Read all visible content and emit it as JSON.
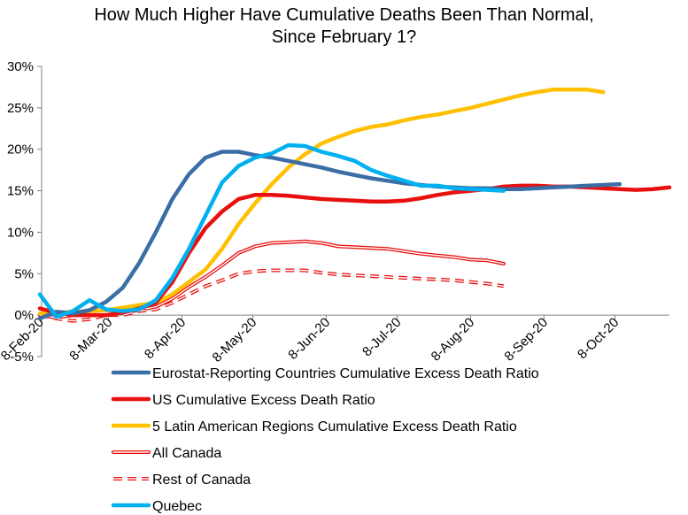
{
  "chart_data": {
    "type": "line",
    "title": [
      "How Much Higher Have Cumulative Deaths Been Than Normal,",
      "Since February 1?"
    ],
    "xlabel": "",
    "ylabel": "",
    "ylim": [
      -0.05,
      0.3
    ],
    "yticks": [
      -0.05,
      0,
      0.05,
      0.1,
      0.15,
      0.2,
      0.25,
      0.3
    ],
    "ytick_labels": [
      "-5%",
      "0%",
      "5%",
      "10%",
      "15%",
      "20%",
      "25%",
      "30%"
    ],
    "xlim": [
      "2020-02-08",
      "2020-10-31"
    ],
    "xticks": [
      "2020-02-08",
      "2020-03-08",
      "2020-04-08",
      "2020-05-08",
      "2020-06-08",
      "2020-07-08",
      "2020-08-08",
      "2020-09-08",
      "2020-10-08"
    ],
    "xtick_labels": [
      "8-Feb-20",
      "8-Mar-20",
      "8-Apr-20",
      "8-May-20",
      "8-Jun-20",
      "8-Jul-20",
      "8-Aug-20",
      "8-Sep-20",
      "8-Oct-20"
    ],
    "grid": false,
    "legend_position": "bottom",
    "series": [
      {
        "name": "Eurostat-Reporting Countries Cumulative Excess Death Ratio",
        "color": "#3A6EA5",
        "style": "solid",
        "x": [
          "2020-02-08",
          "2020-02-15",
          "2020-02-22",
          "2020-02-29",
          "2020-03-07",
          "2020-03-14",
          "2020-03-21",
          "2020-03-28",
          "2020-04-04",
          "2020-04-11",
          "2020-04-18",
          "2020-04-25",
          "2020-05-02",
          "2020-05-09",
          "2020-05-16",
          "2020-05-23",
          "2020-05-30",
          "2020-06-06",
          "2020-06-13",
          "2020-06-20",
          "2020-06-27",
          "2020-07-04",
          "2020-07-11",
          "2020-07-18",
          "2020-07-25",
          "2020-08-01",
          "2020-08-08",
          "2020-08-15",
          "2020-08-22",
          "2020-08-29",
          "2020-09-05",
          "2020-09-12",
          "2020-09-19",
          "2020-09-26",
          "2020-10-03",
          "2020-10-10"
        ],
        "y": [
          -0.004,
          0.004,
          0.002,
          0.006,
          0.016,
          0.033,
          0.063,
          0.1,
          0.14,
          0.17,
          0.19,
          0.197,
          0.197,
          0.193,
          0.19,
          0.186,
          0.182,
          0.178,
          0.173,
          0.169,
          0.165,
          0.162,
          0.159,
          0.157,
          0.155,
          0.154,
          0.153,
          0.153,
          0.152,
          0.152,
          0.153,
          0.154,
          0.155,
          0.156,
          0.157,
          0.158
        ]
      },
      {
        "name": "US Cumulative Excess Death Ratio",
        "color": "#E8100F",
        "style": "solid",
        "x": [
          "2020-02-08",
          "2020-02-15",
          "2020-02-22",
          "2020-02-29",
          "2020-03-07",
          "2020-03-14",
          "2020-03-21",
          "2020-03-28",
          "2020-04-04",
          "2020-04-11",
          "2020-04-18",
          "2020-04-25",
          "2020-05-02",
          "2020-05-09",
          "2020-05-16",
          "2020-05-23",
          "2020-05-30",
          "2020-06-06",
          "2020-06-13",
          "2020-06-20",
          "2020-06-27",
          "2020-07-04",
          "2020-07-11",
          "2020-07-18",
          "2020-07-25",
          "2020-08-01",
          "2020-08-08",
          "2020-08-15",
          "2020-08-22",
          "2020-08-29",
          "2020-09-05",
          "2020-09-12",
          "2020-09-19",
          "2020-09-26",
          "2020-10-03",
          "2020-10-10",
          "2020-10-17",
          "2020-10-24",
          "2020-10-31"
        ],
        "y": [
          0.008,
          0.003,
          0.0,
          0.0,
          0.0,
          0.003,
          0.008,
          0.015,
          0.04,
          0.075,
          0.105,
          0.125,
          0.14,
          0.145,
          0.145,
          0.144,
          0.142,
          0.14,
          0.139,
          0.138,
          0.137,
          0.137,
          0.138,
          0.141,
          0.145,
          0.148,
          0.15,
          0.152,
          0.155,
          0.156,
          0.156,
          0.155,
          0.155,
          0.154,
          0.153,
          0.152,
          0.151,
          0.152,
          0.154
        ]
      },
      {
        "name": "5 Latin American Regions Cumulative Excess Death Ratio",
        "color": "#FFC000",
        "style": "solid",
        "x": [
          "2020-02-08",
          "2020-02-15",
          "2020-02-22",
          "2020-02-29",
          "2020-03-07",
          "2020-03-14",
          "2020-03-21",
          "2020-03-28",
          "2020-04-04",
          "2020-04-11",
          "2020-04-18",
          "2020-04-25",
          "2020-05-02",
          "2020-05-09",
          "2020-05-16",
          "2020-05-23",
          "2020-05-30",
          "2020-06-06",
          "2020-06-13",
          "2020-06-20",
          "2020-06-27",
          "2020-07-04",
          "2020-07-11",
          "2020-07-18",
          "2020-07-25",
          "2020-08-01",
          "2020-08-08",
          "2020-08-15",
          "2020-08-22",
          "2020-08-29",
          "2020-09-05",
          "2020-09-12",
          "2020-09-19",
          "2020-09-26",
          "2020-10-03"
        ],
        "y": [
          0.002,
          0.003,
          0.004,
          0.005,
          0.006,
          0.009,
          0.012,
          0.015,
          0.025,
          0.04,
          0.055,
          0.08,
          0.11,
          0.135,
          0.158,
          0.178,
          0.194,
          0.207,
          0.215,
          0.222,
          0.227,
          0.23,
          0.235,
          0.239,
          0.242,
          0.246,
          0.25,
          0.255,
          0.26,
          0.265,
          0.269,
          0.272,
          0.272,
          0.272,
          0.269
        ]
      },
      {
        "name": "All Canada",
        "color": "#E8100F",
        "style": "double",
        "x": [
          "2020-02-08",
          "2020-02-15",
          "2020-02-22",
          "2020-02-29",
          "2020-03-07",
          "2020-03-14",
          "2020-03-21",
          "2020-03-28",
          "2020-04-04",
          "2020-04-11",
          "2020-04-18",
          "2020-04-25",
          "2020-05-02",
          "2020-05-09",
          "2020-05-16",
          "2020-05-23",
          "2020-05-30",
          "2020-06-06",
          "2020-06-13",
          "2020-06-20",
          "2020-06-27",
          "2020-07-04",
          "2020-07-11",
          "2020-07-18",
          "2020-07-25",
          "2020-08-01",
          "2020-08-08",
          "2020-08-15",
          "2020-08-22"
        ],
        "y": [
          0.0,
          -0.003,
          0.0,
          0.003,
          0.003,
          0.003,
          0.006,
          0.01,
          0.02,
          0.034,
          0.046,
          0.06,
          0.075,
          0.083,
          0.087,
          0.088,
          0.089,
          0.087,
          0.083,
          0.082,
          0.081,
          0.08,
          0.077,
          0.074,
          0.072,
          0.07,
          0.067,
          0.066,
          0.062
        ]
      },
      {
        "name": "Rest of Canada",
        "color": "#E8100F",
        "style": "dashed",
        "x": [
          "2020-02-08",
          "2020-02-15",
          "2020-02-22",
          "2020-02-29",
          "2020-03-07",
          "2020-03-14",
          "2020-03-21",
          "2020-03-28",
          "2020-04-04",
          "2020-04-11",
          "2020-04-18",
          "2020-04-25",
          "2020-05-02",
          "2020-05-09",
          "2020-05-16",
          "2020-05-23",
          "2020-05-30",
          "2020-06-06",
          "2020-06-13",
          "2020-06-20",
          "2020-06-27",
          "2020-07-04",
          "2020-07-11",
          "2020-07-18",
          "2020-07-25",
          "2020-08-01",
          "2020-08-08",
          "2020-08-15",
          "2020-08-22"
        ],
        "y": [
          0.0,
          -0.004,
          -0.007,
          -0.005,
          0.0,
          0.0,
          0.005,
          0.007,
          0.015,
          0.025,
          0.035,
          0.042,
          0.05,
          0.053,
          0.054,
          0.054,
          0.054,
          0.051,
          0.049,
          0.048,
          0.047,
          0.046,
          0.045,
          0.044,
          0.043,
          0.042,
          0.04,
          0.038,
          0.035
        ]
      },
      {
        "name": "Quebec",
        "color": "#00B0F0",
        "style": "solid",
        "x": [
          "2020-02-08",
          "2020-02-15",
          "2020-02-22",
          "2020-02-29",
          "2020-03-07",
          "2020-03-14",
          "2020-03-21",
          "2020-03-28",
          "2020-04-04",
          "2020-04-11",
          "2020-04-18",
          "2020-04-25",
          "2020-05-02",
          "2020-05-09",
          "2020-05-16",
          "2020-05-23",
          "2020-05-30",
          "2020-06-06",
          "2020-06-13",
          "2020-06-20",
          "2020-06-27",
          "2020-07-04",
          "2020-07-11",
          "2020-07-18",
          "2020-07-25",
          "2020-08-01",
          "2020-08-08",
          "2020-08-15",
          "2020-08-22"
        ],
        "y": [
          0.025,
          -0.002,
          0.005,
          0.018,
          0.007,
          0.005,
          0.007,
          0.018,
          0.045,
          0.08,
          0.12,
          0.16,
          0.18,
          0.19,
          0.195,
          0.205,
          0.204,
          0.197,
          0.192,
          0.186,
          0.175,
          0.168,
          0.162,
          0.156,
          0.156,
          0.153,
          0.152,
          0.151,
          0.15
        ]
      }
    ]
  }
}
